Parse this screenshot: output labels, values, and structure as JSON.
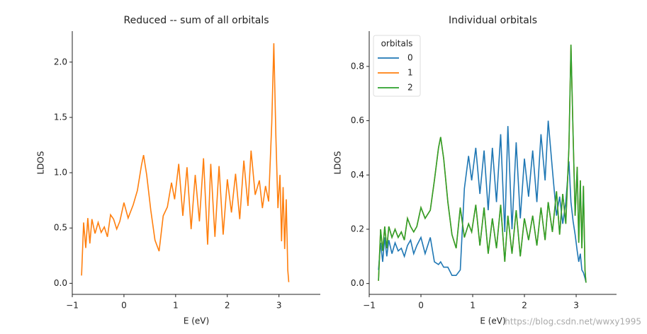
{
  "chart_data": [
    {
      "type": "line",
      "title": "Reduced -- sum of all orbitals",
      "xlabel": "E (eV)",
      "ylabel": "LDOS",
      "x": [
        -0.82,
        -0.78,
        -0.74,
        -0.7,
        -0.66,
        -0.62,
        -0.56,
        -0.5,
        -0.44,
        -0.38,
        -0.32,
        -0.26,
        -0.2,
        -0.14,
        -0.08,
        0.0,
        0.08,
        0.18,
        0.26,
        0.34,
        0.38,
        0.44,
        0.52,
        0.6,
        0.68,
        0.76,
        0.84,
        0.92,
        0.98,
        1.06,
        1.14,
        1.22,
        1.3,
        1.38,
        1.46,
        1.54,
        1.62,
        1.68,
        1.76,
        1.84,
        1.92,
        2.0,
        2.08,
        2.16,
        2.24,
        2.32,
        2.4,
        2.46,
        2.54,
        2.62,
        2.68,
        2.74,
        2.8,
        2.86,
        2.9,
        2.94,
        2.98,
        3.02,
        3.05,
        3.08,
        3.11,
        3.14,
        3.17,
        3.19
      ],
      "values": [
        0.07,
        0.55,
        0.32,
        0.59,
        0.36,
        0.58,
        0.45,
        0.55,
        0.46,
        0.51,
        0.42,
        0.62,
        0.58,
        0.49,
        0.56,
        0.73,
        0.59,
        0.71,
        0.84,
        1.07,
        1.16,
        0.98,
        0.66,
        0.39,
        0.29,
        0.61,
        0.69,
        0.91,
        0.76,
        1.08,
        0.61,
        1.05,
        0.49,
        0.98,
        0.56,
        1.13,
        0.35,
        1.08,
        0.42,
        1.06,
        0.44,
        0.94,
        0.64,
        0.99,
        0.58,
        1.11,
        0.7,
        1.2,
        0.8,
        0.93,
        0.68,
        0.88,
        0.74,
        1.45,
        2.17,
        1.33,
        0.68,
        0.98,
        0.38,
        0.87,
        0.31,
        0.76,
        0.12,
        0.011
      ],
      "color": "#ff7f0e",
      "xlim": [
        -1,
        3.8
      ],
      "xticks": [
        {
          "value": -1,
          "label": "−1"
        },
        0,
        1,
        2,
        3
      ],
      "ylim": [
        -0.1,
        2.28
      ],
      "yticks": [
        {
          "value": 0,
          "label": "0.0"
        },
        {
          "value": 0.5,
          "label": "0.5"
        },
        {
          "value": 1,
          "label": "1.0"
        },
        {
          "value": 1.5,
          "label": "1.5"
        },
        {
          "value": 2,
          "label": "2.0"
        }
      ]
    },
    {
      "type": "line",
      "title": "Individual orbitals",
      "xlabel": "E (eV)",
      "ylabel": "LDOS",
      "x": [
        -0.82,
        -0.78,
        -0.74,
        -0.7,
        -0.66,
        -0.62,
        -0.56,
        -0.5,
        -0.44,
        -0.38,
        -0.32,
        -0.26,
        -0.2,
        -0.14,
        -0.08,
        0.0,
        0.08,
        0.18,
        0.26,
        0.34,
        0.38,
        0.44,
        0.52,
        0.6,
        0.68,
        0.76,
        0.84,
        0.92,
        0.98,
        1.06,
        1.14,
        1.22,
        1.3,
        1.38,
        1.46,
        1.54,
        1.62,
        1.68,
        1.76,
        1.84,
        1.92,
        2.0,
        2.08,
        2.16,
        2.24,
        2.32,
        2.4,
        2.46,
        2.54,
        2.62,
        2.68,
        2.74,
        2.8,
        2.86,
        2.9,
        2.94,
        2.98,
        3.02,
        3.05,
        3.08,
        3.11,
        3.14,
        3.17,
        3.19
      ],
      "series": [
        {
          "name": "0",
          "color": "#1f77b4",
          "values": [
            0.05,
            0.15,
            0.08,
            0.17,
            0.1,
            0.16,
            0.11,
            0.15,
            0.12,
            0.13,
            0.1,
            0.14,
            0.16,
            0.11,
            0.14,
            0.17,
            0.11,
            0.17,
            0.08,
            0.07,
            0.08,
            0.06,
            0.06,
            0.03,
            0.03,
            0.05,
            0.35,
            0.47,
            0.38,
            0.5,
            0.33,
            0.49,
            0.27,
            0.5,
            0.3,
            0.55,
            0.19,
            0.58,
            0.2,
            0.52,
            0.24,
            0.46,
            0.32,
            0.49,
            0.3,
            0.55,
            0.38,
            0.6,
            0.42,
            0.25,
            0.32,
            0.22,
            0.3,
            0.45,
            0.3,
            0.23,
            0.18,
            0.12,
            0.08,
            0.11,
            0.05,
            0.04,
            0.02,
            0.005
          ]
        },
        {
          "name": "1",
          "color": "#ff7f0e",
          "values": [
            0.01,
            0.2,
            0.12,
            0.21,
            0.13,
            0.21,
            0.17,
            0.2,
            0.17,
            0.19,
            0.16,
            0.24,
            0.21,
            0.19,
            0.21,
            0.28,
            0.24,
            0.27,
            0.38,
            0.5,
            0.54,
            0.46,
            0.3,
            0.18,
            0.13,
            0.28,
            0.17,
            0.22,
            0.19,
            0.29,
            0.14,
            0.28,
            0.11,
            0.24,
            0.13,
            0.29,
            0.08,
            0.25,
            0.11,
            0.27,
            0.1,
            0.24,
            0.16,
            0.25,
            0.14,
            0.28,
            0.16,
            0.3,
            0.19,
            0.34,
            0.18,
            0.33,
            0.22,
            0.5,
            0.88,
            0.55,
            0.25,
            0.43,
            0.15,
            0.38,
            0.13,
            0.36,
            0.05,
            0.003
          ]
        },
        {
          "name": "2",
          "color": "#2ca02c",
          "values": [
            0.01,
            0.2,
            0.12,
            0.21,
            0.13,
            0.21,
            0.17,
            0.2,
            0.17,
            0.19,
            0.16,
            0.24,
            0.21,
            0.19,
            0.21,
            0.28,
            0.24,
            0.27,
            0.38,
            0.5,
            0.54,
            0.46,
            0.3,
            0.18,
            0.13,
            0.28,
            0.17,
            0.22,
            0.19,
            0.29,
            0.14,
            0.28,
            0.11,
            0.24,
            0.13,
            0.29,
            0.08,
            0.25,
            0.11,
            0.27,
            0.1,
            0.24,
            0.16,
            0.25,
            0.14,
            0.28,
            0.16,
            0.3,
            0.19,
            0.34,
            0.18,
            0.33,
            0.22,
            0.5,
            0.88,
            0.55,
            0.25,
            0.43,
            0.15,
            0.38,
            0.13,
            0.36,
            0.05,
            0.003
          ]
        }
      ],
      "legend_title": "orbitals",
      "legend": "upper left",
      "xlim": [
        -1,
        3.78
      ],
      "xticks": [
        {
          "value": -1,
          "label": "−1"
        },
        0,
        1,
        2,
        3
      ],
      "ylim": [
        -0.04,
        0.93
      ],
      "yticks": [
        {
          "value": 0,
          "label": "0.0"
        },
        {
          "value": 0.2,
          "label": "0.2"
        },
        {
          "value": 0.4,
          "label": "0.4"
        },
        {
          "value": 0.6,
          "label": "0.6"
        },
        {
          "value": 0.8,
          "label": "0.8"
        }
      ]
    }
  ],
  "watermark": "https://blog.csdn.net/wwxy1995"
}
